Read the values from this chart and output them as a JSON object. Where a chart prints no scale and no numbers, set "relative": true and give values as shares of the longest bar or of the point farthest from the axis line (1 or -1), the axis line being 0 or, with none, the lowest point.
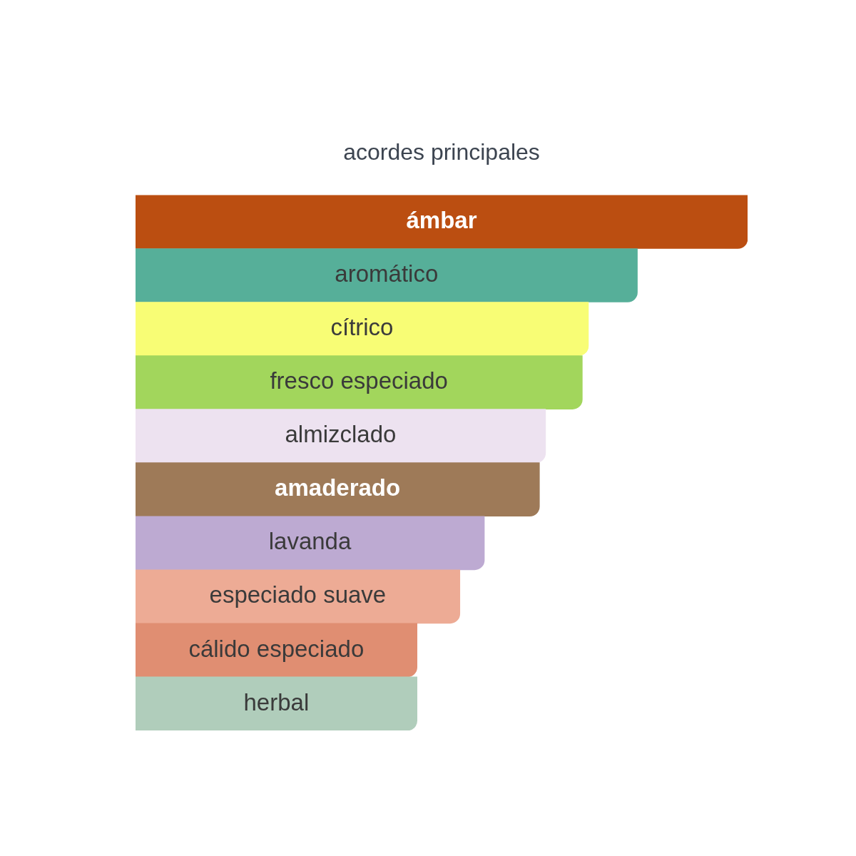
{
  "chart_data": {
    "type": "bar",
    "orientation": "horizontal",
    "relative": true,
    "title": "acordes principales",
    "categories": [
      "ámbar",
      "aromático",
      "cítrico",
      "fresco especiado",
      "almizclado",
      "amaderado",
      "lavanda",
      "especiado suave",
      "cálido especiado",
      "herbal"
    ],
    "values": [
      1,
      0.82,
      0.74,
      0.73,
      0.67,
      0.66,
      0.57,
      0.53,
      0.46,
      0.46
    ],
    "colors": [
      "#bb4e11",
      "#56af99",
      "#f8fd75",
      "#a2d65c",
      "#ede2f0",
      "#9e7a58",
      "#bdaad2",
      "#edab95",
      "#e08e72",
      "#b0cdbb"
    ]
  }
}
